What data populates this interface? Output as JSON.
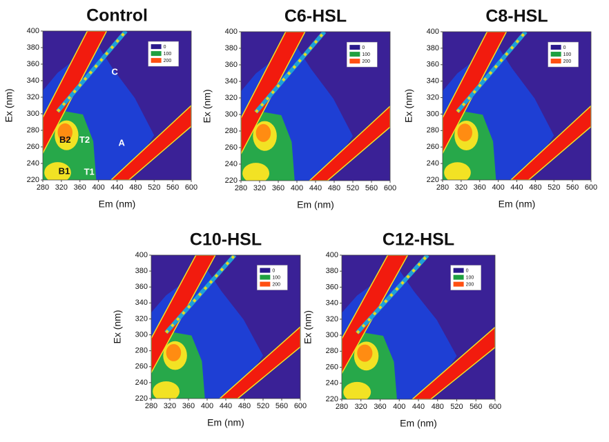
{
  "chart_data": [
    {
      "type": "contour",
      "title": "Control",
      "xlabel": "Em (nm)",
      "ylabel": "Ex (nm)",
      "xlim": [
        280,
        600
      ],
      "ylim": [
        220,
        400
      ],
      "xticks": [
        280,
        320,
        360,
        400,
        440,
        480,
        520,
        560,
        600
      ],
      "yticks": [
        220,
        240,
        260,
        280,
        300,
        320,
        340,
        360,
        380,
        400
      ],
      "legend": {
        "levels": [
          0,
          100,
          200
        ],
        "colors": [
          "#2b1a8c",
          "#1fa040",
          "#ff5012"
        ]
      },
      "annotations": [
        {
          "text": "C",
          "x": 435,
          "y": 350,
          "color": "#ffffff"
        },
        {
          "text": "A",
          "x": 450,
          "y": 264,
          "color": "#ffffff"
        },
        {
          "text": "B2",
          "x": 328,
          "y": 268,
          "color": "#111111"
        },
        {
          "text": "T2",
          "x": 370,
          "y": 268,
          "color": "#ffffff"
        },
        {
          "text": "B1",
          "x": 326,
          "y": 230,
          "color": "#111111"
        },
        {
          "text": "T1",
          "x": 380,
          "y": 229,
          "color": "#ffffff"
        }
      ]
    },
    {
      "type": "contour",
      "title": "C6-HSL",
      "xlabel": "Em (nm)",
      "ylabel": "Ex (nm)",
      "xlim": [
        280,
        600
      ],
      "ylim": [
        220,
        400
      ],
      "xticks": [
        280,
        320,
        360,
        400,
        440,
        480,
        520,
        560,
        600
      ],
      "yticks": [
        220,
        240,
        260,
        280,
        300,
        320,
        340,
        360,
        380,
        400
      ],
      "legend": {
        "levels": [
          0,
          100,
          200
        ],
        "colors": [
          "#2b1a8c",
          "#1fa040",
          "#ff5012"
        ]
      }
    },
    {
      "type": "contour",
      "title": "C8-HSL",
      "xlabel": "Em (nm)",
      "ylabel": "Ex (nm)",
      "xlim": [
        280,
        600
      ],
      "ylim": [
        220,
        400
      ],
      "xticks": [
        280,
        320,
        360,
        400,
        440,
        480,
        520,
        560,
        600
      ],
      "yticks": [
        220,
        240,
        260,
        280,
        300,
        320,
        340,
        360,
        380,
        400
      ],
      "legend": {
        "levels": [
          0,
          100,
          200
        ],
        "colors": [
          "#2b1a8c",
          "#1fa040",
          "#ff5012"
        ]
      }
    },
    {
      "type": "contour",
      "title": "C10-HSL",
      "xlabel": "Em (nm)",
      "ylabel": "Ex (nm)",
      "xlim": [
        280,
        600
      ],
      "ylim": [
        220,
        400
      ],
      "xticks": [
        280,
        320,
        360,
        400,
        440,
        480,
        520,
        560,
        600
      ],
      "yticks": [
        220,
        240,
        260,
        280,
        300,
        320,
        340,
        360,
        380,
        400
      ],
      "legend": {
        "levels": [
          0,
          100,
          200
        ],
        "colors": [
          "#2b1a8c",
          "#1fa040",
          "#ff5012"
        ]
      }
    },
    {
      "type": "contour",
      "title": "C12-HSL",
      "xlabel": "Em (nm)",
      "ylabel": "Ex (nm)",
      "xlim": [
        280,
        600
      ],
      "ylim": [
        220,
        400
      ],
      "xticks": [
        280,
        320,
        360,
        400,
        440,
        480,
        520,
        560,
        600
      ],
      "yticks": [
        220,
        240,
        260,
        280,
        300,
        320,
        340,
        360,
        380,
        400
      ],
      "legend": {
        "levels": [
          0,
          100,
          200
        ],
        "colors": [
          "#2b1a8c",
          "#1fa040",
          "#ff5012"
        ]
      }
    }
  ]
}
